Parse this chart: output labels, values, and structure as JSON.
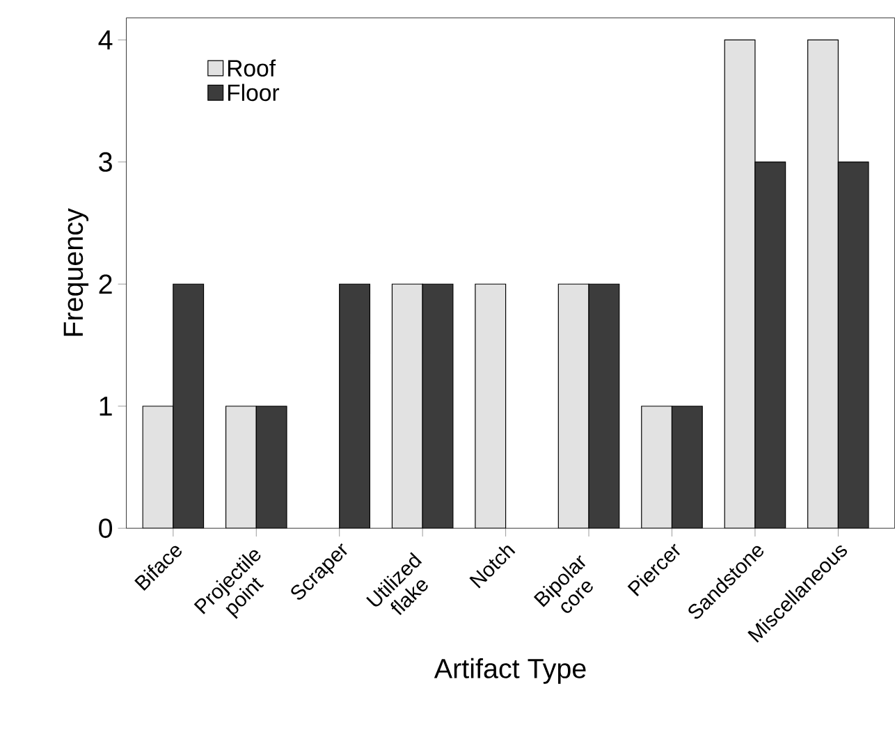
{
  "chart_data": {
    "type": "bar",
    "xlabel": "Artifact Type",
    "ylabel": "Frequency",
    "categories": [
      "Biface",
      "Projectile point",
      "Scraper",
      "Utilized flake",
      "Notch",
      "Bipolar core",
      "Piercer",
      "Sandstone",
      "Miscellaneous"
    ],
    "series": [
      {
        "name": "Roof",
        "color": "#e2e2e2",
        "values": [
          1,
          1,
          null,
          2,
          2,
          2,
          1,
          4,
          4
        ]
      },
      {
        "name": "Floor",
        "color": "#3c3c3c",
        "values": [
          2,
          1,
          2,
          2,
          null,
          2,
          1,
          3,
          3
        ]
      }
    ],
    "ylim": [
      0,
      4.18
    ],
    "yticks": [
      0,
      1,
      2,
      3,
      4
    ],
    "grid": false,
    "legend": "top left"
  }
}
